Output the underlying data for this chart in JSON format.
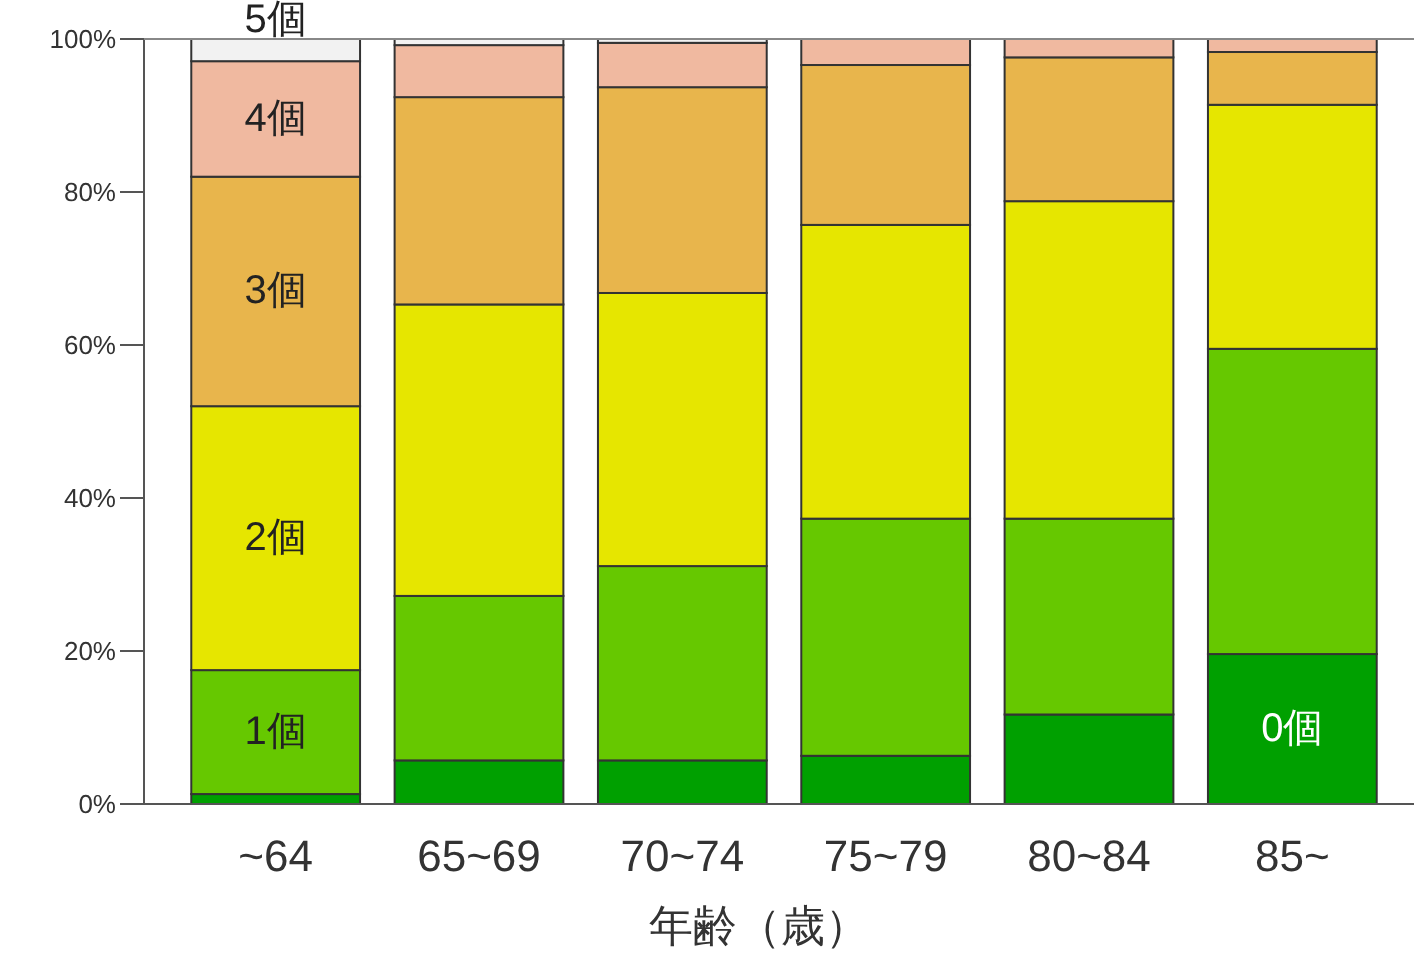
{
  "chart_data": {
    "type": "bar",
    "stacked": true,
    "xlabel": "年齢（歳）",
    "categories": [
      "~64",
      "65~69",
      "70~74",
      "75~79",
      "80~84",
      "85~"
    ],
    "series": [
      {
        "name": "0個",
        "color": "#00a000",
        "values": [
          1.3,
          5.7,
          5.7,
          6.3,
          11.7,
          19.6
        ]
      },
      {
        "name": "1個",
        "color": "#66c800",
        "values": [
          16.2,
          21.5,
          25.4,
          31.0,
          25.6,
          39.9
        ]
      },
      {
        "name": "2個",
        "color": "#e6e600",
        "values": [
          34.5,
          38.1,
          35.7,
          38.4,
          41.5,
          31.9
        ]
      },
      {
        "name": "3個",
        "color": "#e8b54c",
        "values": [
          30.0,
          27.1,
          26.9,
          20.9,
          18.8,
          6.9
        ]
      },
      {
        "name": "4個",
        "color": "#f0b9a0",
        "values": [
          15.1,
          6.8,
          5.8,
          3.4,
          2.4,
          1.7
        ]
      },
      {
        "name": "5個",
        "color": "#f2f2f2",
        "values": [
          2.9,
          0.8,
          0.5,
          0.0,
          0.0,
          0.0
        ]
      }
    ],
    "ylim": [
      0,
      100
    ],
    "yticks": [
      {
        "value": 0,
        "label": "0%"
      },
      {
        "value": 20,
        "label": "20%"
      },
      {
        "value": 40,
        "label": "40%"
      },
      {
        "value": 60,
        "label": "60%"
      },
      {
        "value": 80,
        "label": "80%"
      },
      {
        "value": 100,
        "label": "100%"
      }
    ],
    "grid": false
  }
}
